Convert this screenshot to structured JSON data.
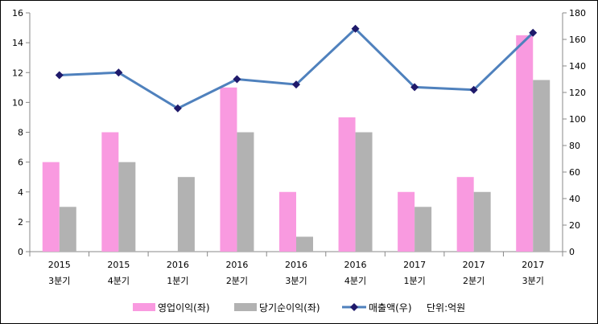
{
  "chart_data": {
    "type": "bar",
    "categories": [
      {
        "year": "2015",
        "quarter": "3분기"
      },
      {
        "year": "2015",
        "quarter": "4분기"
      },
      {
        "year": "2016",
        "quarter": "1분기"
      },
      {
        "year": "2016",
        "quarter": "2분기"
      },
      {
        "year": "2016",
        "quarter": "3분기"
      },
      {
        "year": "2016",
        "quarter": "4분기"
      },
      {
        "year": "2017",
        "quarter": "1분기"
      },
      {
        "year": "2017",
        "quarter": "2분기"
      },
      {
        "year": "2017",
        "quarter": "3분기"
      }
    ],
    "series": [
      {
        "name": "영업이익(좌)",
        "type": "bar",
        "axis": "left",
        "color": "#f99ae0",
        "values": [
          6,
          8,
          0,
          11,
          4,
          9,
          4,
          5,
          14.5
        ]
      },
      {
        "name": "당기순이익(좌)",
        "type": "bar",
        "axis": "left",
        "color": "#b2b2b2",
        "values": [
          3,
          6,
          5,
          8,
          1,
          8,
          3,
          4,
          11.5
        ]
      },
      {
        "name": "매출액(우)",
        "type": "line",
        "axis": "right",
        "color": "#4f81bd",
        "marker_color": "#1f1a6b",
        "values": [
          133,
          135,
          108,
          130,
          126,
          168,
          124,
          122,
          165
        ]
      }
    ],
    "y_left": {
      "min": 0,
      "max": 16,
      "ticks": [
        0,
        2,
        4,
        6,
        8,
        10,
        12,
        14,
        16
      ]
    },
    "y_right": {
      "min": 0,
      "max": 180,
      "ticks": [
        0,
        20,
        40,
        60,
        80,
        100,
        120,
        140,
        160,
        180
      ]
    },
    "unit_note": "단위:억원",
    "legend_position": "bottom",
    "grid": false
  }
}
